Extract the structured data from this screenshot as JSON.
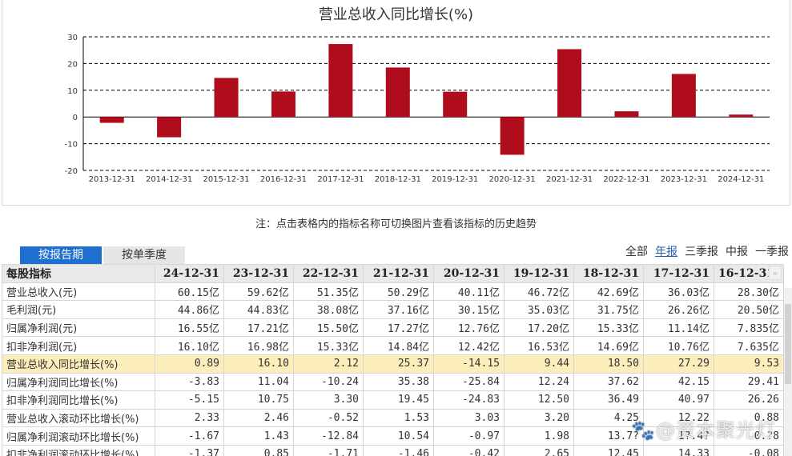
{
  "chart": {
    "title": "营业总收入同比增长(%)"
  },
  "chart_data": {
    "type": "bar",
    "title": "营业总收入同比增长(%)",
    "xlabel": "",
    "ylabel": "",
    "categories": [
      "2013-12-31",
      "2014-12-31",
      "2015-12-31",
      "2016-12-31",
      "2017-12-31",
      "2018-12-31",
      "2019-12-31",
      "2020-12-31",
      "2021-12-31",
      "2022-12-31",
      "2023-12-31",
      "2024-12-31"
    ],
    "values": [
      -2.2,
      -7.6,
      14.6,
      9.53,
      27.29,
      18.5,
      9.44,
      -14.15,
      25.37,
      2.12,
      16.1,
      0.89
    ],
    "yticks": [
      30,
      20,
      10,
      0,
      -10,
      -20
    ],
    "ylim": [
      -20,
      30
    ],
    "grid": "dashed horizontal",
    "bar_color": "#b00d1c",
    "legend": "none"
  },
  "note": "注：点击表格内的指标名称可切换图片查看该指标的历史趋势",
  "tabs": [
    {
      "label": "按报告期",
      "active": true
    },
    {
      "label": "按单季度",
      "active": false
    }
  ],
  "period_filter": {
    "options": [
      "全部",
      "年报",
      "三季报",
      "中报",
      "一季报"
    ],
    "selected": "年报"
  },
  "table": {
    "header_label": "每股指标",
    "columns": [
      "24-12-31",
      "23-12-31",
      "22-12-31",
      "21-12-31",
      "20-12-31",
      "19-12-31",
      "18-12-31",
      "17-12-31",
      "16-12-31"
    ],
    "rows": [
      {
        "label": "营业总收入(元)",
        "values": [
          "60.15亿",
          "59.62亿",
          "51.35亿",
          "50.29亿",
          "40.11亿",
          "46.72亿",
          "42.69亿",
          "36.03亿",
          "28.30亿"
        ]
      },
      {
        "label": "毛利润(元)",
        "values": [
          "44.86亿",
          "44.83亿",
          "38.08亿",
          "37.16亿",
          "30.15亿",
          "35.03亿",
          "31.75亿",
          "26.26亿",
          "20.50亿"
        ]
      },
      {
        "label": "归属净利润(元)",
        "values": [
          "16.55亿",
          "17.21亿",
          "15.50亿",
          "17.27亿",
          "12.76亿",
          "17.20亿",
          "15.33亿",
          "11.14亿",
          "7.835亿"
        ]
      },
      {
        "label": "扣非净利润(元)",
        "values": [
          "16.10亿",
          "16.98亿",
          "15.33亿",
          "14.84亿",
          "12.42亿",
          "16.53亿",
          "14.69亿",
          "10.76亿",
          "7.635亿"
        ]
      },
      {
        "label": "营业总收入同比增长(%)",
        "values": [
          "0.89",
          "16.10",
          "2.12",
          "25.37",
          "-14.15",
          "9.44",
          "18.50",
          "27.29",
          "9.53"
        ],
        "highlight": true
      },
      {
        "label": "归属净利润同比增长(%)",
        "values": [
          "-3.83",
          "11.04",
          "-10.24",
          "35.38",
          "-25.84",
          "12.24",
          "37.62",
          "42.15",
          "29.41"
        ]
      },
      {
        "label": "扣非净利润同比增长(%)",
        "values": [
          "-5.15",
          "10.75",
          "3.30",
          "19.45",
          "-24.83",
          "12.50",
          "36.49",
          "40.97",
          "26.26"
        ]
      },
      {
        "label": "营业总收入滚动环比增长(%)",
        "values": [
          "2.33",
          "2.46",
          "-0.52",
          "1.53",
          "3.03",
          "3.20",
          "4.25",
          "12.22",
          "0.88"
        ]
      },
      {
        "label": "归属净利润滚动环比增长(%)",
        "values": [
          "-1.67",
          "1.43",
          "-12.84",
          "10.54",
          "-0.97",
          "1.98",
          "13.7?",
          "1?.4?",
          "0.?8"
        ]
      },
      {
        "label": "扣非净利润滚动环比增长(%)",
        "values": [
          "-1.37",
          "0.85",
          "-1.71",
          "-1.46",
          "-0.42",
          "2.65",
          "12.45",
          "14.33",
          "-0.08"
        ]
      }
    ]
  },
  "scroll_right_icon": "»",
  "watermark": "🐾@资本聚光灯"
}
